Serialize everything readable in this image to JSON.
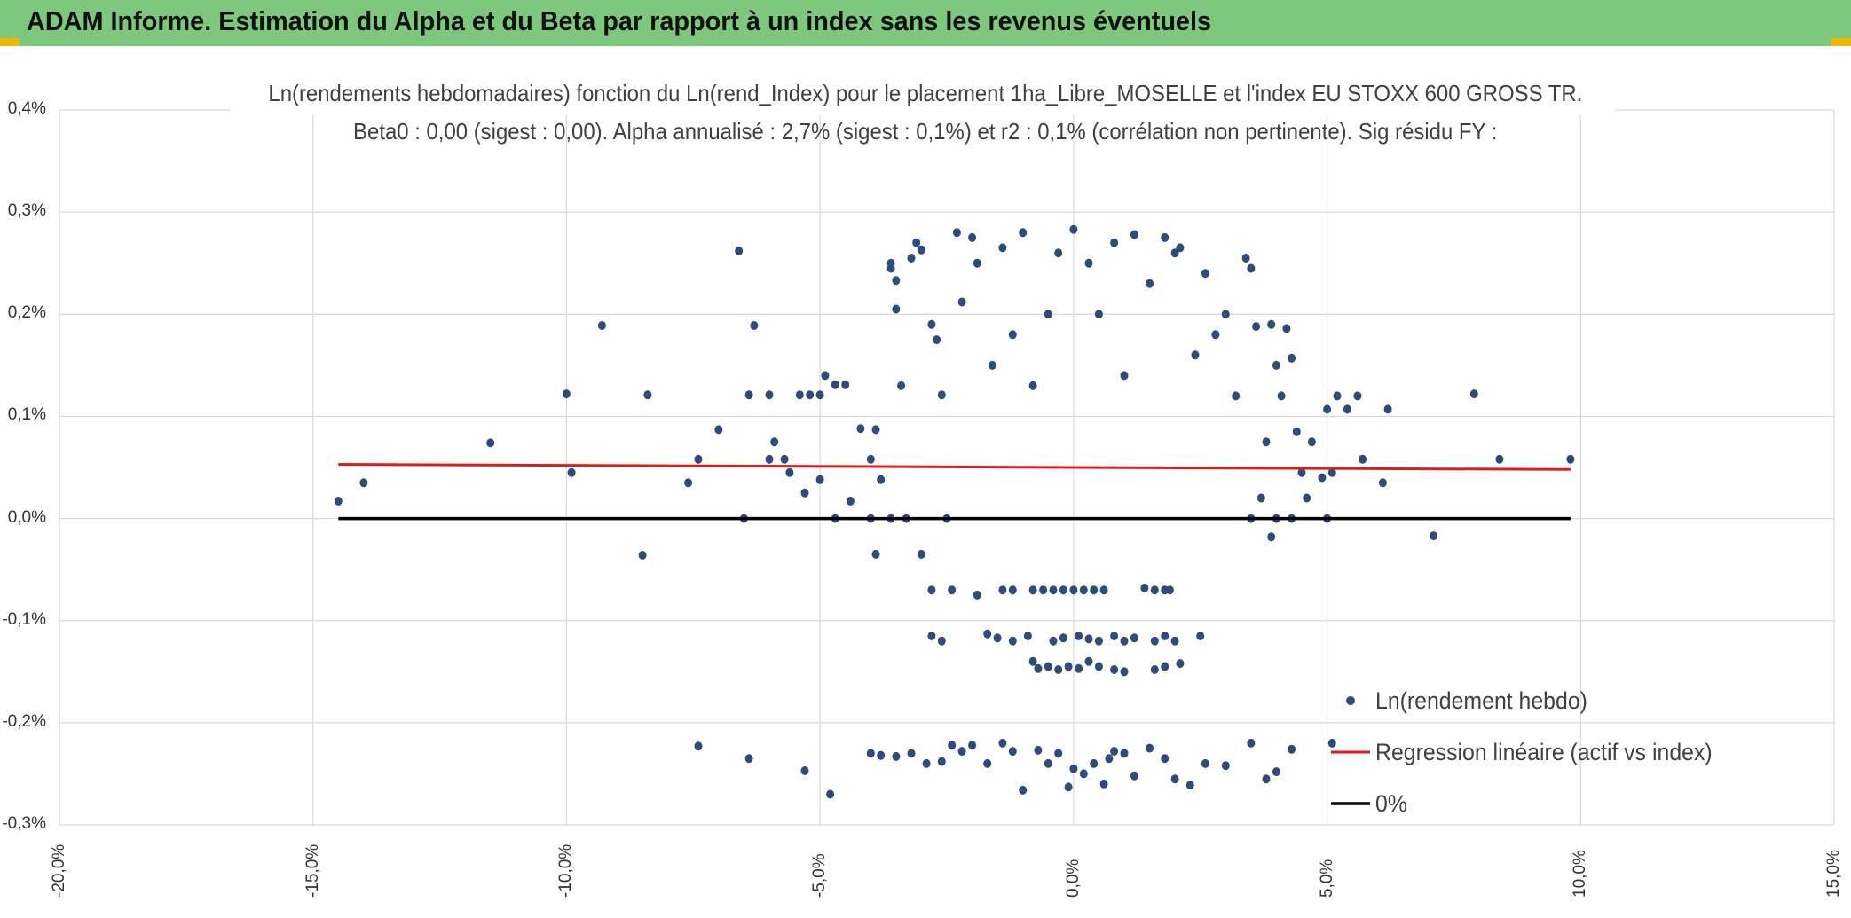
{
  "header": {
    "title": "ADAM Informe. Estimation du Alpha et du Beta par rapport à un index sans les revenus éventuels",
    "background": "#7ec87e",
    "corner_color": "#f2b705"
  },
  "chart_data": {
    "type": "scatter",
    "title_line1": "Ln(rendements hebdomadaires) fonction du Ln(rend_Index) pour le placement 1ha_Libre_MOSELLE et l'index EU STOXX 600 GROSS TR.",
    "title_line2": "Beta0 : 0,00 (sigest : 0,00). Alpha annualisé : 2,7% (sigest : 0,1%) et r2 : 0,1% (corrélation non pertinente). Sig résidu FY :",
    "xlabel": "",
    "ylabel": "",
    "xlim": [
      -20,
      15
    ],
    "ylim": [
      -0.3,
      0.4
    ],
    "x_ticks": [
      -20,
      -15,
      -10,
      -5,
      0,
      5,
      10,
      15
    ],
    "x_tick_labels": [
      "-20,0%",
      "-15,0%",
      "-10,0%",
      "-5,0%",
      "0,0%",
      "5,0%",
      "10,0%",
      "15,0%"
    ],
    "y_ticks": [
      0.4,
      0.3,
      0.2,
      0.1,
      0.0,
      -0.1,
      -0.2,
      -0.3
    ],
    "y_tick_labels": [
      "0,4%",
      "0,3%",
      "0,2%",
      "0,1%",
      "0,0%",
      "-0,1%",
      "-0,2%",
      "-0,3%"
    ],
    "grid": true,
    "legend_position": "bottom-right",
    "colors": {
      "points": "#2f4b7c",
      "regression": "#e31a1c",
      "zero": "#000000",
      "grid": "#d9d9d9"
    },
    "series": [
      {
        "name": "Ln(rendement hebdo)",
        "type": "scatter",
        "points": [
          [
            -14.5,
            0.017
          ],
          [
            -14.0,
            0.035
          ],
          [
            -11.5,
            0.074
          ],
          [
            -10.0,
            0.122
          ],
          [
            -9.9,
            0.045
          ],
          [
            -9.3,
            0.189
          ],
          [
            -8.5,
            -0.036
          ],
          [
            -8.4,
            0.121
          ],
          [
            -7.6,
            0.035
          ],
          [
            -7.4,
            0.058
          ],
          [
            -7.4,
            -0.223
          ],
          [
            -7.0,
            0.087
          ],
          [
            -6.6,
            0.262
          ],
          [
            -6.5,
            0.0
          ],
          [
            -6.4,
            0.121
          ],
          [
            -6.4,
            -0.235
          ],
          [
            -6.3,
            0.189
          ],
          [
            -6.0,
            0.121
          ],
          [
            -6.0,
            0.058
          ],
          [
            -5.9,
            0.075
          ],
          [
            -5.7,
            0.058
          ],
          [
            -5.6,
            0.045
          ],
          [
            -5.4,
            0.121
          ],
          [
            -5.3,
            0.025
          ],
          [
            -5.3,
            -0.247
          ],
          [
            -5.2,
            0.121
          ],
          [
            -5.0,
            0.121
          ],
          [
            -5.0,
            0.038
          ],
          [
            -4.9,
            0.14
          ],
          [
            -4.7,
            0.131
          ],
          [
            -4.7,
            0.0
          ],
          [
            -4.5,
            0.131
          ],
          [
            -4.4,
            0.017
          ],
          [
            -4.2,
            0.088
          ],
          [
            -4.0,
            0.058
          ],
          [
            -4.0,
            0.0
          ],
          [
            -3.9,
            0.087
          ],
          [
            -3.9,
            -0.035
          ],
          [
            -3.8,
            0.038
          ],
          [
            -3.6,
            0.0
          ],
          [
            -3.6,
            0.245
          ],
          [
            -3.6,
            0.25
          ],
          [
            -3.5,
            0.233
          ],
          [
            -3.5,
            0.205
          ],
          [
            -3.4,
            0.13
          ],
          [
            -3.3,
            0.0
          ],
          [
            -3.2,
            0.255
          ],
          [
            -3.1,
            0.27
          ],
          [
            -3.0,
            0.263
          ],
          [
            -3.0,
            -0.035
          ],
          [
            -2.8,
            0.19
          ],
          [
            -2.7,
            0.175
          ],
          [
            -2.6,
            0.121
          ],
          [
            -2.5,
            0.0
          ],
          [
            -2.3,
            0.28
          ],
          [
            -2.2,
            0.212
          ],
          [
            -2.0,
            0.275
          ],
          [
            -1.9,
            0.25
          ],
          [
            -1.6,
            0.15
          ],
          [
            -1.4,
            0.265
          ],
          [
            -1.2,
            0.18
          ],
          [
            -1.0,
            0.28
          ],
          [
            -0.8,
            0.13
          ],
          [
            -0.5,
            0.2
          ],
          [
            -0.3,
            0.26
          ],
          [
            0.0,
            0.283
          ],
          [
            0.3,
            0.25
          ],
          [
            0.5,
            0.2
          ],
          [
            0.8,
            0.27
          ],
          [
            1.0,
            0.14
          ],
          [
            1.2,
            0.278
          ],
          [
            1.5,
            0.23
          ],
          [
            1.8,
            0.275
          ],
          [
            2.0,
            0.26
          ],
          [
            2.1,
            0.265
          ],
          [
            2.4,
            0.16
          ],
          [
            2.6,
            0.24
          ],
          [
            2.8,
            0.18
          ],
          [
            3.0,
            0.2
          ],
          [
            3.2,
            0.12
          ],
          [
            3.4,
            0.255
          ],
          [
            3.5,
            0.245
          ],
          [
            3.6,
            0.188
          ],
          [
            3.8,
            0.075
          ],
          [
            3.9,
            0.19
          ],
          [
            4.0,
            0.15
          ],
          [
            4.1,
            0.12
          ],
          [
            4.2,
            0.186
          ],
          [
            4.3,
            0.157
          ],
          [
            4.4,
            0.085
          ],
          [
            4.5,
            0.045
          ],
          [
            4.7,
            0.075
          ],
          [
            4.9,
            0.04
          ],
          [
            5.0,
            0.107
          ],
          [
            5.1,
            0.045
          ],
          [
            5.2,
            0.12
          ],
          [
            5.4,
            0.107
          ],
          [
            5.6,
            0.12
          ],
          [
            5.7,
            0.058
          ],
          [
            6.1,
            0.035
          ],
          [
            6.2,
            0.107
          ],
          [
            7.1,
            -0.017
          ],
          [
            7.9,
            0.122
          ],
          [
            8.4,
            0.058
          ],
          [
            9.8,
            0.058
          ],
          [
            3.9,
            -0.018
          ],
          [
            4.0,
            0.0
          ],
          [
            4.3,
            0.0
          ],
          [
            5.0,
            0.0
          ],
          [
            3.7,
            0.02
          ],
          [
            4.6,
            0.02
          ],
          [
            3.5,
            0.0
          ],
          [
            -2.8,
            -0.07
          ],
          [
            -2.4,
            -0.07
          ],
          [
            -1.9,
            -0.075
          ],
          [
            -1.4,
            -0.07
          ],
          [
            -1.2,
            -0.07
          ],
          [
            -0.8,
            -0.07
          ],
          [
            -0.6,
            -0.07
          ],
          [
            -0.4,
            -0.07
          ],
          [
            -0.2,
            -0.07
          ],
          [
            0.0,
            -0.07
          ],
          [
            0.2,
            -0.07
          ],
          [
            0.4,
            -0.07
          ],
          [
            0.6,
            -0.07
          ],
          [
            1.4,
            -0.068
          ],
          [
            1.6,
            -0.07
          ],
          [
            1.8,
            -0.07
          ],
          [
            1.9,
            -0.07
          ],
          [
            -2.8,
            -0.115
          ],
          [
            -2.6,
            -0.12
          ],
          [
            -1.7,
            -0.113
          ],
          [
            -1.5,
            -0.117
          ],
          [
            -1.2,
            -0.12
          ],
          [
            -0.9,
            -0.115
          ],
          [
            -0.4,
            -0.12
          ],
          [
            -0.2,
            -0.117
          ],
          [
            0.1,
            -0.115
          ],
          [
            0.3,
            -0.118
          ],
          [
            0.5,
            -0.12
          ],
          [
            0.8,
            -0.115
          ],
          [
            1.0,
            -0.12
          ],
          [
            1.2,
            -0.117
          ],
          [
            1.6,
            -0.12
          ],
          [
            1.8,
            -0.115
          ],
          [
            2.0,
            -0.12
          ],
          [
            2.5,
            -0.115
          ],
          [
            -0.8,
            -0.14
          ],
          [
            -0.7,
            -0.147
          ],
          [
            -0.5,
            -0.145
          ],
          [
            -0.3,
            -0.148
          ],
          [
            -0.1,
            -0.145
          ],
          [
            0.1,
            -0.147
          ],
          [
            0.3,
            -0.14
          ],
          [
            0.5,
            -0.145
          ],
          [
            0.8,
            -0.148
          ],
          [
            1.0,
            -0.15
          ],
          [
            1.6,
            -0.148
          ],
          [
            1.8,
            -0.145
          ],
          [
            2.1,
            -0.142
          ],
          [
            -4.0,
            -0.23
          ],
          [
            -3.8,
            -0.232
          ],
          [
            -3.5,
            -0.233
          ],
          [
            -3.2,
            -0.23
          ],
          [
            -2.9,
            -0.24
          ],
          [
            -2.6,
            -0.238
          ],
          [
            -2.4,
            -0.222
          ],
          [
            -2.2,
            -0.228
          ],
          [
            -2.0,
            -0.222
          ],
          [
            -1.7,
            -0.24
          ],
          [
            -1.4,
            -0.22
          ],
          [
            -1.2,
            -0.228
          ],
          [
            -1.0,
            -0.266
          ],
          [
            -0.7,
            -0.227
          ],
          [
            -0.5,
            -0.24
          ],
          [
            -0.3,
            -0.23
          ],
          [
            -0.1,
            -0.263
          ],
          [
            0.0,
            -0.245
          ],
          [
            0.2,
            -0.25
          ],
          [
            0.4,
            -0.24
          ],
          [
            0.6,
            -0.26
          ],
          [
            0.7,
            -0.235
          ],
          [
            0.8,
            -0.228
          ],
          [
            1.0,
            -0.23
          ],
          [
            1.2,
            -0.252
          ],
          [
            1.5,
            -0.225
          ],
          [
            1.8,
            -0.235
          ],
          [
            2.0,
            -0.255
          ],
          [
            2.3,
            -0.261
          ],
          [
            2.6,
            -0.24
          ],
          [
            3.0,
            -0.242
          ],
          [
            3.5,
            -0.22
          ],
          [
            3.8,
            -0.255
          ],
          [
            4.0,
            -0.248
          ],
          [
            4.3,
            -0.226
          ],
          [
            5.1,
            -0.22
          ],
          [
            -4.8,
            -0.27
          ]
        ]
      },
      {
        "name": "Regression linéaire (actif vs index)",
        "type": "line",
        "x": [
          -14.5,
          9.8
        ],
        "y": [
          0.053,
          0.048
        ]
      },
      {
        "name": "0%",
        "type": "line",
        "x": [
          -14.5,
          9.8
        ],
        "y": [
          0.0,
          0.0
        ]
      }
    ]
  }
}
